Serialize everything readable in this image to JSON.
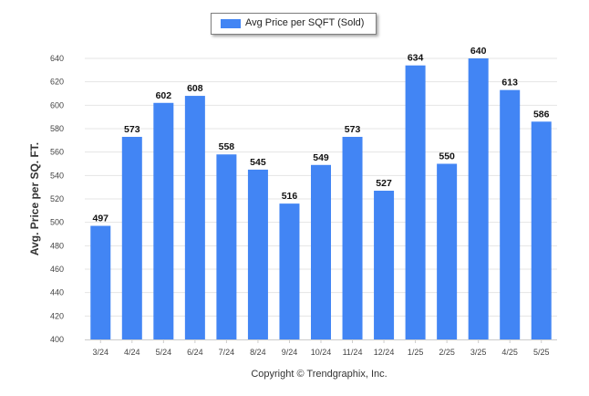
{
  "chart_data": {
    "type": "bar",
    "categories": [
      "3/24",
      "4/24",
      "5/24",
      "6/24",
      "7/24",
      "8/24",
      "9/24",
      "10/24",
      "11/24",
      "12/24",
      "1/25",
      "2/25",
      "3/25",
      "4/25",
      "5/25"
    ],
    "series": [
      {
        "name": "Avg Price per SQFT (Sold)",
        "values": [
          497,
          573,
          602,
          608,
          558,
          545,
          516,
          549,
          573,
          527,
          634,
          550,
          640,
          613,
          586
        ]
      }
    ],
    "title": "",
    "xlabel": "",
    "ylabel": "Avg. Price per SQ. FT.",
    "ylim": [
      400,
      650
    ],
    "yticks": [
      400,
      420,
      440,
      460,
      480,
      500,
      520,
      540,
      560,
      580,
      600,
      620,
      640
    ],
    "grid": true,
    "legend_position": "top-center",
    "bar_color": "#4285f4"
  },
  "footer": {
    "copyright": "Copyright © Trendgraphix, Inc."
  }
}
